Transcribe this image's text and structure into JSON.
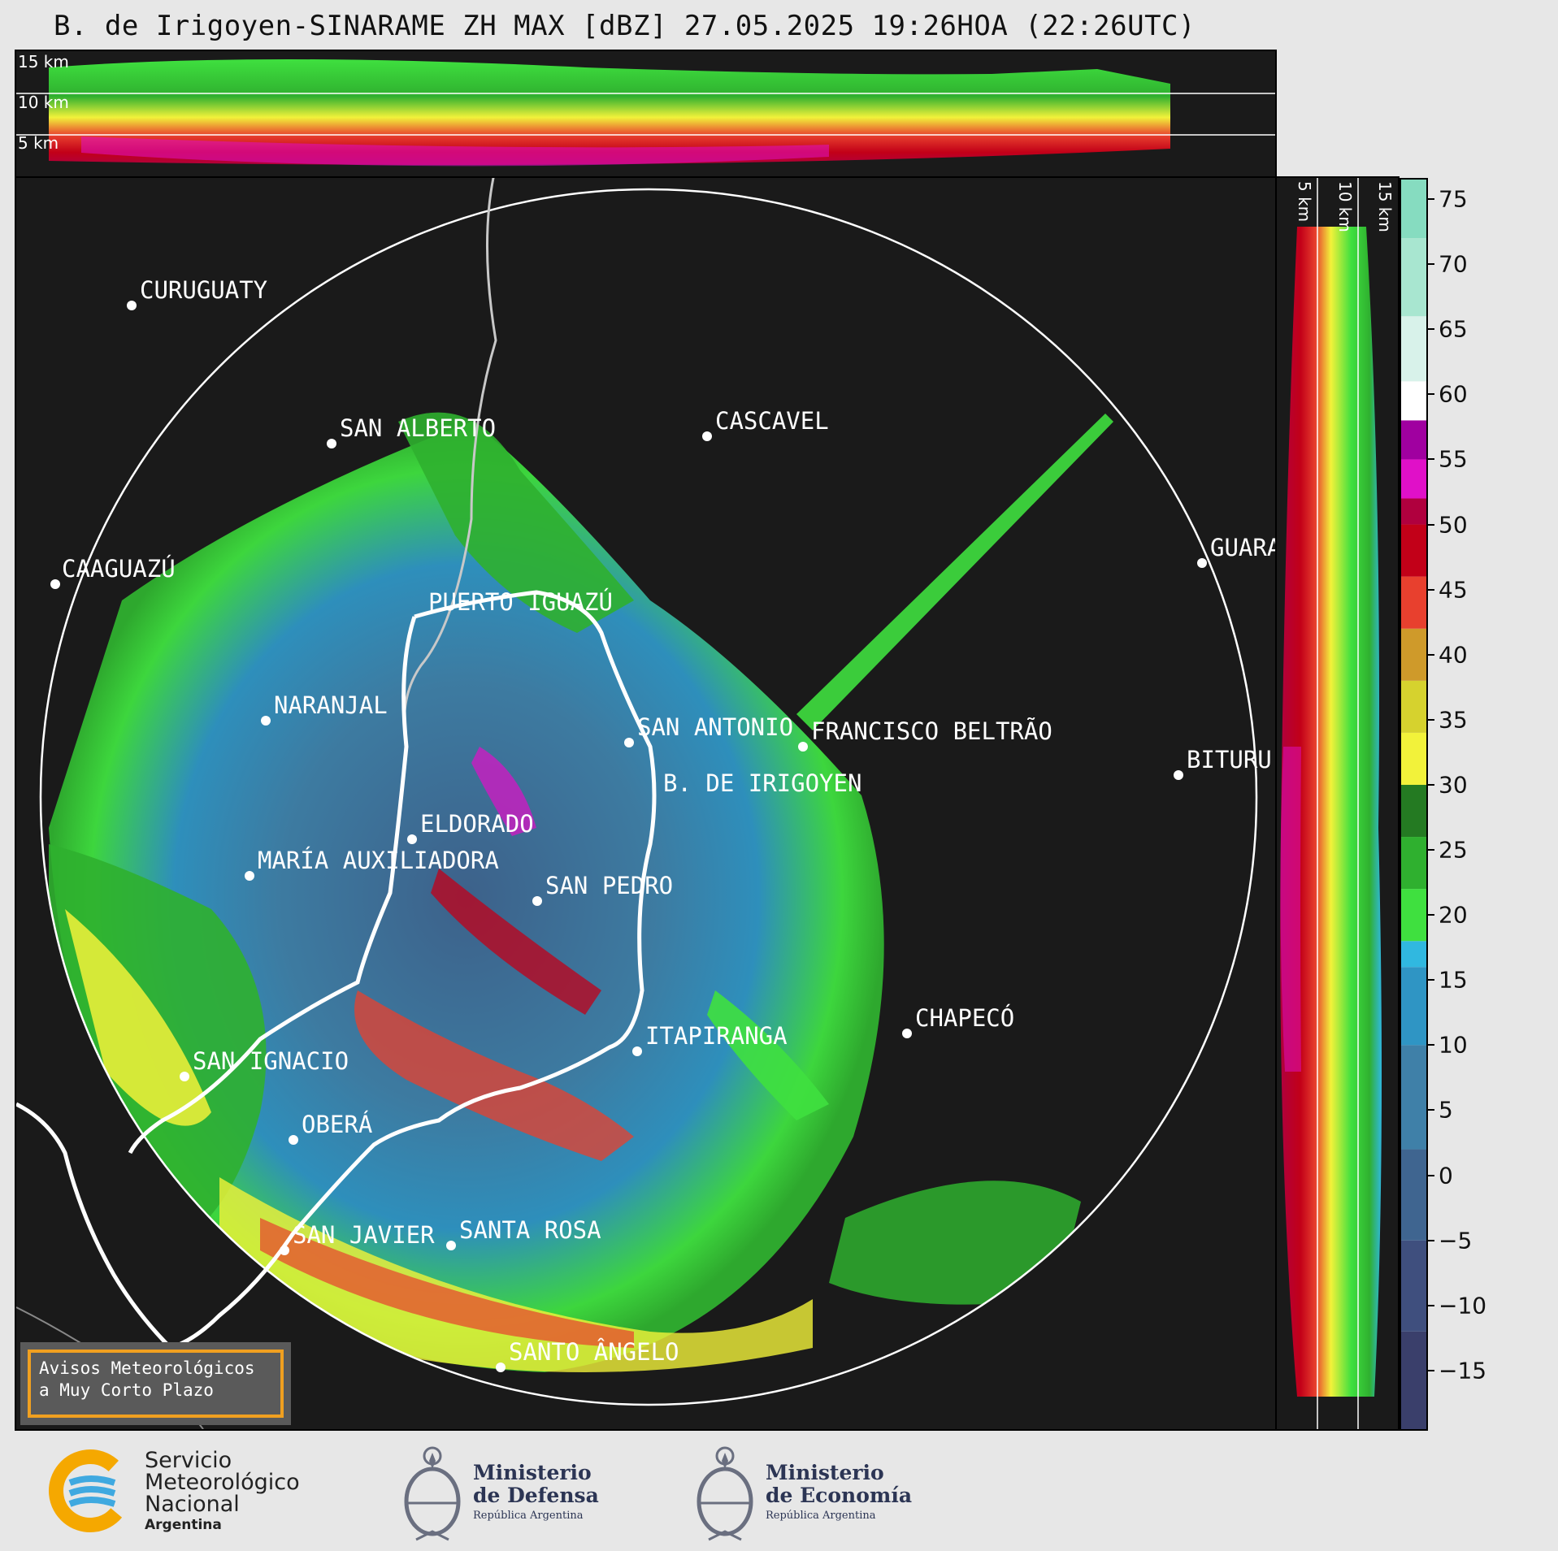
{
  "title": "B. de Irigoyen-SINARAME ZH MAX [dBZ] 27.05.2025 19:26HOA (22:26UTC)",
  "height_labels": [
    "15 km",
    "10 km",
    "5 km"
  ],
  "side_height_labels": [
    "5 km",
    "10 km",
    "15 km"
  ],
  "cities": [
    {
      "name": "CURUGUATY"
    },
    {
      "name": "SAN ALBERTO"
    },
    {
      "name": "CASCAVEL"
    },
    {
      "name": "CAAGUAZÚ"
    },
    {
      "name": "GUARA"
    },
    {
      "name": "PUERTO IGUAZÚ"
    },
    {
      "name": "NARANJAL"
    },
    {
      "name": "SAN ANTONIO"
    },
    {
      "name": "FRANCISCO BELTRÃO"
    },
    {
      "name": "BITURU"
    },
    {
      "name": "B. DE IRIGOYEN"
    },
    {
      "name": "ELDORADO"
    },
    {
      "name": "MARÍA AUXILIADORA"
    },
    {
      "name": "SAN PEDRO"
    },
    {
      "name": "CHAPECÓ"
    },
    {
      "name": "ITAPIRANGA"
    },
    {
      "name": "SAN IGNACIO"
    },
    {
      "name": "OBERÁ"
    },
    {
      "name": "SAN JAVIER"
    },
    {
      "name": "SANTA ROSA"
    },
    {
      "name": "SANTO ÂNGELO"
    }
  ],
  "colorbar": {
    "unit": "dBZ",
    "min": -19.5,
    "max": 76.5,
    "ticks": [
      "75",
      "70",
      "65",
      "60",
      "55",
      "50",
      "45",
      "40",
      "35",
      "30",
      "25",
      "20",
      "15",
      "10",
      "5",
      "0",
      "−5",
      "−10",
      "−15"
    ],
    "tick_values": [
      75,
      70,
      65,
      60,
      55,
      50,
      45,
      40,
      35,
      30,
      25,
      20,
      15,
      10,
      5,
      0,
      -5,
      -10,
      -15
    ],
    "stops": [
      {
        "from": -19.5,
        "color": "#3a3f6b"
      },
      {
        "from": -12,
        "color": "#3f4f7e"
      },
      {
        "from": -5,
        "color": "#3f6590"
      },
      {
        "from": 2,
        "color": "#3f80a8"
      },
      {
        "from": 10,
        "color": "#2f95c4"
      },
      {
        "from": 16,
        "color": "#30b8e0"
      },
      {
        "from": 18,
        "color": "#3fe03f"
      },
      {
        "from": 22,
        "color": "#2fb02f"
      },
      {
        "from": 26,
        "color": "#247a22"
      },
      {
        "from": 30,
        "color": "#f2f23a"
      },
      {
        "from": 34,
        "color": "#d6d22e"
      },
      {
        "from": 38,
        "color": "#cf9a2a"
      },
      {
        "from": 42,
        "color": "#e8402e"
      },
      {
        "from": 46,
        "color": "#c20018"
      },
      {
        "from": 50,
        "color": "#b0003e"
      },
      {
        "from": 52,
        "color": "#e010c8"
      },
      {
        "from": 55,
        "color": "#a000a0"
      },
      {
        "from": 58,
        "color": "#ffffff"
      },
      {
        "from": 61,
        "color": "#d8f2ea"
      },
      {
        "from": 66,
        "color": "#a8e6d0"
      },
      {
        "from": 72,
        "color": "#86dcc0"
      }
    ]
  },
  "notice": {
    "line1": "Avisos Meteorológicos",
    "line2": "a Muy Corto Plazo"
  },
  "logos": {
    "smn": {
      "line1": "Servicio",
      "line2": "Meteorológico",
      "line3": "Nacional",
      "line4": "Argentina"
    },
    "defensa": {
      "line1": "Ministerio",
      "line2": "de Defensa",
      "line3": "República Argentina"
    },
    "economia": {
      "line1": "Ministerio",
      "line2": "de Economía",
      "line3": "República Argentina"
    }
  },
  "colors": {
    "panel": "#1a1a1a",
    "range_ring": "#ffffff",
    "border": "#ffffff",
    "accent": "#f0a020"
  }
}
